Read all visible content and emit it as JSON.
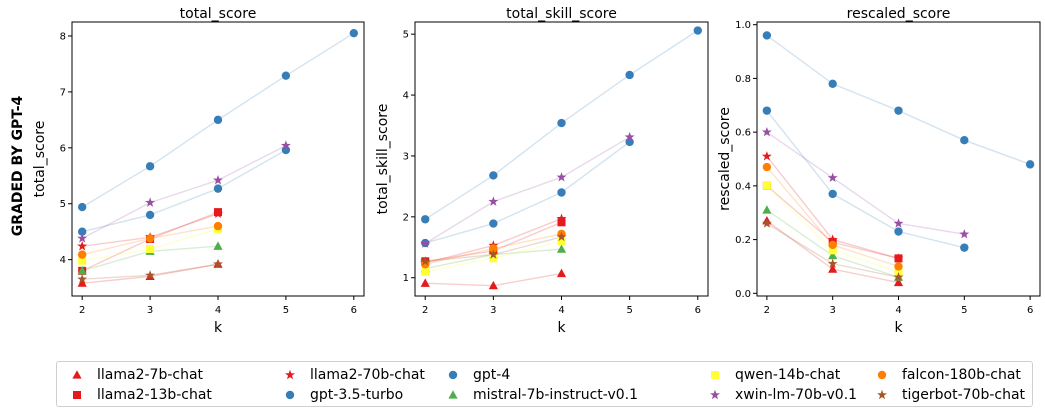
{
  "figure": {
    "side_label": "GRADED BY GPT-4"
  },
  "chart_data": [
    {
      "type": "line",
      "title": "total_score",
      "xlabel": "k",
      "ylabel": "total_score",
      "xlim": [
        1.85,
        6.15
      ],
      "ylim": [
        3.35,
        8.25
      ],
      "xticks": [
        2,
        3,
        4,
        5,
        6
      ],
      "yticks": [
        4,
        5,
        6,
        7,
        8
      ],
      "series": [
        {
          "name": "llama2-7b-chat",
          "x": [
            2,
            3,
            4
          ],
          "y": [
            3.58,
            3.7,
            3.92
          ]
        },
        {
          "name": "llama2-13b-chat",
          "x": [
            2,
            3,
            4
          ],
          "y": [
            3.8,
            4.37,
            4.85
          ]
        },
        {
          "name": "llama2-70b-chat",
          "x": [
            2,
            3,
            4
          ],
          "y": [
            4.24,
            4.4,
            4.82
          ]
        },
        {
          "name": "gpt-3.5-turbo",
          "x": [
            2,
            3,
            4,
            5
          ],
          "y": [
            4.5,
            4.8,
            5.27,
            5.96
          ]
        },
        {
          "name": "gpt-4",
          "x": [
            2,
            3,
            4,
            5,
            6
          ],
          "y": [
            4.94,
            5.67,
            6.5,
            7.29,
            8.05
          ]
        },
        {
          "name": "mistral-7b-instruct-v0.1",
          "x": [
            2,
            3,
            4
          ],
          "y": [
            3.8,
            4.15,
            4.24
          ]
        },
        {
          "name": "qwen-14b-chat",
          "x": [
            2,
            3,
            4
          ],
          "y": [
            3.98,
            4.19,
            4.55
          ]
        },
        {
          "name": "xwin-lm-70b-v0.1",
          "x": [
            2,
            3,
            4,
            5
          ],
          "y": [
            4.38,
            5.02,
            5.42,
            6.04
          ]
        },
        {
          "name": "falcon-180b-chat",
          "x": [
            2,
            3,
            4
          ],
          "y": [
            4.09,
            4.38,
            4.6
          ]
        },
        {
          "name": "tigerbot-70b-chat",
          "x": [
            2,
            3,
            4
          ],
          "y": [
            3.65,
            3.72,
            3.92
          ]
        }
      ]
    },
    {
      "type": "line",
      "title": "total_skill_score",
      "xlabel": "k",
      "ylabel": "total_skill_score",
      "xlim": [
        1.85,
        6.15
      ],
      "ylim": [
        0.7,
        5.2
      ],
      "xticks": [
        2,
        3,
        4,
        5,
        6
      ],
      "yticks": [
        1,
        2,
        3,
        4,
        5
      ],
      "series": [
        {
          "name": "llama2-7b-chat",
          "x": [
            2,
            3,
            4
          ],
          "y": [
            0.91,
            0.87,
            1.07
          ]
        },
        {
          "name": "llama2-13b-chat",
          "x": [
            2,
            3,
            4
          ],
          "y": [
            1.27,
            1.44,
            1.91
          ]
        },
        {
          "name": "llama2-70b-chat",
          "x": [
            2,
            3,
            4
          ],
          "y": [
            1.24,
            1.53,
            1.97
          ]
        },
        {
          "name": "gpt-3.5-turbo",
          "x": [
            2,
            3,
            4,
            5
          ],
          "y": [
            1.57,
            1.89,
            2.4,
            3.23
          ]
        },
        {
          "name": "gpt-4",
          "x": [
            2,
            3,
            4,
            5,
            6
          ],
          "y": [
            1.96,
            2.68,
            3.54,
            4.33,
            5.06
          ]
        },
        {
          "name": "mistral-7b-instruct-v0.1",
          "x": [
            2,
            3,
            4
          ],
          "y": [
            1.15,
            1.38,
            1.47
          ]
        },
        {
          "name": "qwen-14b-chat",
          "x": [
            2,
            3,
            4
          ],
          "y": [
            1.1,
            1.32,
            1.6
          ]
        },
        {
          "name": "xwin-lm-70b-v0.1",
          "x": [
            2,
            3,
            4,
            5
          ],
          "y": [
            1.56,
            2.25,
            2.65,
            3.31
          ]
        },
        {
          "name": "falcon-180b-chat",
          "x": [
            2,
            3,
            4
          ],
          "y": [
            1.22,
            1.48,
            1.72
          ]
        },
        {
          "name": "tigerbot-70b-chat",
          "x": [
            2,
            3,
            4
          ],
          "y": [
            1.27,
            1.38,
            1.67
          ]
        }
      ]
    },
    {
      "type": "line",
      "title": "rescaled_score",
      "xlabel": "k",
      "ylabel": "rescaled_score",
      "xlim": [
        1.85,
        6.15
      ],
      "ylim": [
        -0.01,
        1.01
      ],
      "xticks": [
        2,
        3,
        4,
        5,
        6
      ],
      "yticks": [
        0.0,
        0.2,
        0.4,
        0.6,
        0.8,
        1.0
      ],
      "series": [
        {
          "name": "llama2-7b-chat",
          "x": [
            2,
            3,
            4
          ],
          "y": [
            0.27,
            0.09,
            0.04
          ]
        },
        {
          "name": "llama2-13b-chat",
          "x": [
            2,
            3,
            4
          ],
          "y": [
            0.4,
            0.19,
            0.13
          ]
        },
        {
          "name": "llama2-70b-chat",
          "x": [
            2,
            3,
            4
          ],
          "y": [
            0.51,
            0.2,
            0.13
          ]
        },
        {
          "name": "gpt-3.5-turbo",
          "x": [
            2,
            3,
            4,
            5
          ],
          "y": [
            0.68,
            0.37,
            0.23,
            0.17
          ]
        },
        {
          "name": "gpt-4",
          "x": [
            2,
            3,
            4,
            5,
            6
          ],
          "y": [
            0.96,
            0.78,
            0.68,
            0.57,
            0.48
          ]
        },
        {
          "name": "mistral-7b-instruct-v0.1",
          "x": [
            2,
            3,
            4
          ],
          "y": [
            0.31,
            0.14,
            0.06
          ]
        },
        {
          "name": "qwen-14b-chat",
          "x": [
            2,
            3,
            4
          ],
          "y": [
            0.4,
            0.16,
            0.08
          ]
        },
        {
          "name": "xwin-lm-70b-v0.1",
          "x": [
            2,
            3,
            4,
            5
          ],
          "y": [
            0.6,
            0.43,
            0.26,
            0.22
          ]
        },
        {
          "name": "falcon-180b-chat",
          "x": [
            2,
            3,
            4
          ],
          "y": [
            0.47,
            0.18,
            0.1
          ]
        },
        {
          "name": "tigerbot-70b-chat",
          "x": [
            2,
            3,
            4
          ],
          "y": [
            0.26,
            0.11,
            0.06
          ]
        }
      ]
    }
  ],
  "legend": {
    "placement": "bottom",
    "entries": [
      {
        "label": "llama2-7b-chat",
        "color": "#e41a1c",
        "marker": "triangle"
      },
      {
        "label": "llama2-70b-chat",
        "color": "#e41a1c",
        "marker": "star"
      },
      {
        "label": "gpt-4",
        "color": "#377eb8",
        "marker": "circle"
      },
      {
        "label": "qwen-14b-chat",
        "color": "#ffff33",
        "marker": "square"
      },
      {
        "label": "falcon-180b-chat",
        "color": "#ff7f00",
        "marker": "circle"
      },
      {
        "label": "llama2-13b-chat",
        "color": "#e41a1c",
        "marker": "square"
      },
      {
        "label": "gpt-3.5-turbo",
        "color": "#377eb8",
        "marker": "circle"
      },
      {
        "label": "mistral-7b-instruct-v0.1",
        "color": "#4daf4a",
        "marker": "triangle"
      },
      {
        "label": "xwin-lm-70b-v0.1",
        "color": "#984ea3",
        "marker": "star"
      },
      {
        "label": "tigerbot-70b-chat",
        "color": "#a65628",
        "marker": "star"
      }
    ]
  }
}
